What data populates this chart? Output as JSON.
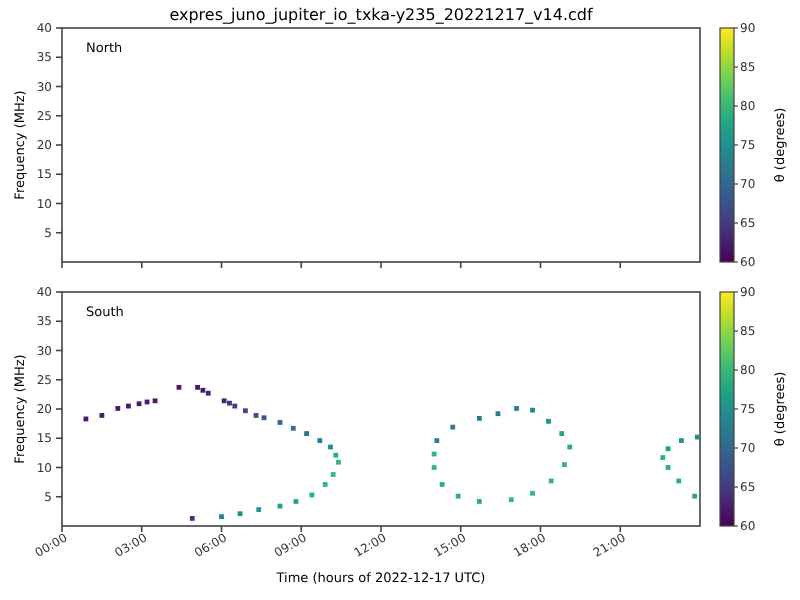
{
  "chart_data": [
    {
      "type": "scatter",
      "title": "expres_juno_jupiter_io_txka-y235_20221217_v14.cdf",
      "ylabel": "Frequency (MHz)",
      "clabel": "θ (degrees)",
      "annotations": [
        "North"
      ],
      "marker": "square",
      "tick_labels": "y",
      "xlim": [
        0,
        24
      ],
      "xticks": [
        {
          "value": 0,
          "label": null
        },
        {
          "value": 3,
          "label": null
        },
        {
          "value": 6,
          "label": null
        },
        {
          "value": 9,
          "label": null
        },
        {
          "value": 12,
          "label": null
        },
        {
          "value": 15,
          "label": null
        },
        {
          "value": 18,
          "label": null
        },
        {
          "value": 21,
          "label": null
        }
      ],
      "ylim": [
        0,
        40
      ],
      "yticks": [
        5,
        10,
        15,
        20,
        25,
        30,
        35,
        40
      ],
      "clim": [
        60,
        90
      ],
      "cticks": [
        60,
        65,
        70,
        75,
        80,
        85,
        90
      ]
    },
    {
      "type": "scatter",
      "xlabel": "Time (hours of 2022-12-17 UTC)",
      "ylabel": "Frequency (MHz)",
      "clabel": "θ (degrees)",
      "annotations": [
        "South"
      ],
      "marker": "square",
      "xlim": [
        0,
        24
      ],
      "xticks": [
        {
          "value": 0,
          "label": "00:00"
        },
        {
          "value": 3,
          "label": "03:00"
        },
        {
          "value": 6,
          "label": "06:00"
        },
        {
          "value": 9,
          "label": "09:00"
        },
        {
          "value": 12,
          "label": "12:00"
        },
        {
          "value": 15,
          "label": "15:00"
        },
        {
          "value": 18,
          "label": "18:00"
        },
        {
          "value": 21,
          "label": "21:00"
        }
      ],
      "ylim": [
        0,
        40
      ],
      "yticks": [
        5,
        10,
        15,
        20,
        25,
        30,
        35,
        40
      ],
      "clim": [
        60,
        90
      ],
      "cticks": [
        60,
        65,
        70,
        75,
        80,
        85,
        90
      ],
      "series": [
        {
          "x": [
            0.9,
            1.5,
            2.1,
            2.5,
            2.9,
            3.2,
            3.5,
            4.4,
            5.1,
            5.3,
            5.5,
            6.1,
            6.3,
            6.5,
            6.9,
            7.3,
            7.6,
            8.2,
            8.7,
            9.2,
            9.7,
            10.1,
            10.3,
            10.4,
            10.2,
            9.9,
            9.4,
            8.8,
            8.2,
            7.4,
            6.7,
            6.0,
            4.9,
            14.1,
            14.7,
            15.7,
            16.4,
            17.1,
            17.7,
            18.3,
            18.8,
            19.1,
            18.9,
            18.4,
            17.7,
            16.9,
            15.7,
            14.9,
            14.3,
            14.0,
            14.0,
            23.9,
            23.3,
            22.8,
            22.6,
            22.8,
            23.2,
            23.8
          ],
          "values": [
            18.3,
            18.9,
            20.1,
            20.5,
            20.9,
            21.2,
            21.4,
            23.7,
            23.7,
            23.2,
            22.7,
            21.4,
            21.0,
            20.5,
            19.7,
            18.9,
            18.5,
            17.7,
            16.7,
            15.8,
            14.6,
            13.5,
            12.1,
            10.9,
            8.8,
            7.1,
            5.3,
            4.2,
            3.4,
            2.8,
            2.1,
            1.6,
            1.3,
            14.6,
            16.9,
            18.4,
            19.2,
            20.1,
            19.8,
            17.9,
            15.8,
            13.5,
            10.5,
            7.7,
            5.6,
            4.5,
            4.2,
            5.1,
            7.1,
            10.0,
            12.3,
            15.2,
            14.6,
            13.2,
            11.7,
            10.0,
            7.7,
            5.1
          ],
          "cvalues": [
            62,
            62,
            62,
            62,
            62,
            62,
            62,
            62,
            62,
            62,
            63,
            63,
            64,
            65,
            66,
            67,
            68,
            70,
            71,
            72,
            73,
            75,
            79,
            80,
            80,
            80,
            79,
            78,
            77,
            76,
            75,
            73,
            64,
            73,
            73,
            72,
            72,
            73,
            74,
            76,
            78,
            79,
            80,
            80,
            80,
            80,
            79,
            79,
            79,
            80,
            80,
            75,
            75,
            77,
            79,
            79,
            79,
            78
          ]
        }
      ]
    }
  ]
}
